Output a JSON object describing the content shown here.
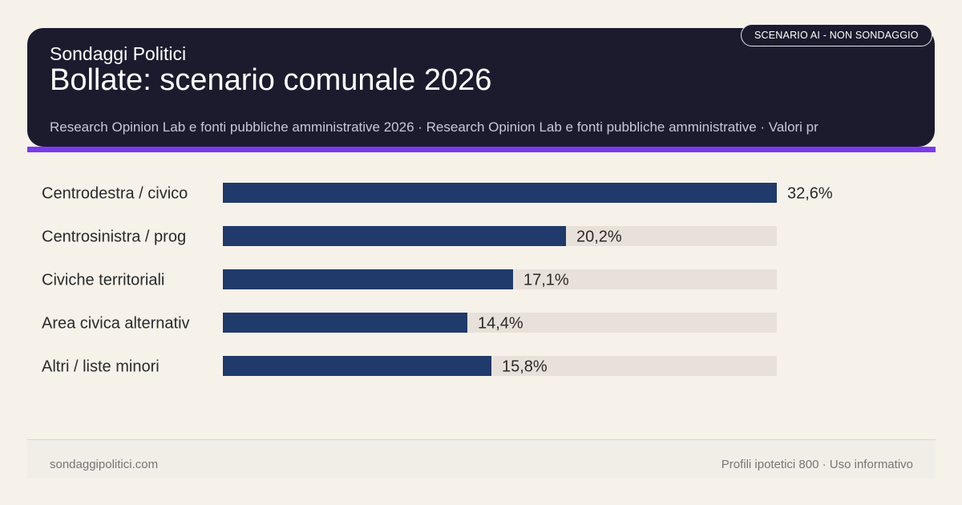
{
  "header": {
    "brand": "Sondaggi Politici",
    "title": "Bollate: scenario comunale 2026",
    "source": "Research Opinion Lab e fonti pubbliche amministrative 2026 · Research Opinion Lab e fonti pubbliche amministrative · Valori pr",
    "badge": "SCENARIO AI - NON SONDAGGIO"
  },
  "footer": {
    "site": "sondaggipolitici.com",
    "note": "Profili ipotetici 800 · Uso informativo"
  },
  "colors": {
    "bar": "#1f3a6b",
    "track": "#e8e1d9",
    "header_bg": "#1c1b2e",
    "accent": "#7c3aed",
    "page_bg": "#f6f2ea"
  },
  "chart_data": {
    "type": "bar",
    "orientation": "horizontal",
    "categories": [
      "Centrodestra / civico",
      "Centrosinistra / prog",
      "Civiche territoriali",
      "Area civica alternativ",
      "Altri / liste minori"
    ],
    "values": [
      32.6,
      20.2,
      17.1,
      14.4,
      15.8
    ],
    "value_labels": [
      "32,6%",
      "20,2%",
      "17,1%",
      "14,4%",
      "15,8%"
    ],
    "xlim": [
      0,
      32.6
    ],
    "grid": false
  }
}
